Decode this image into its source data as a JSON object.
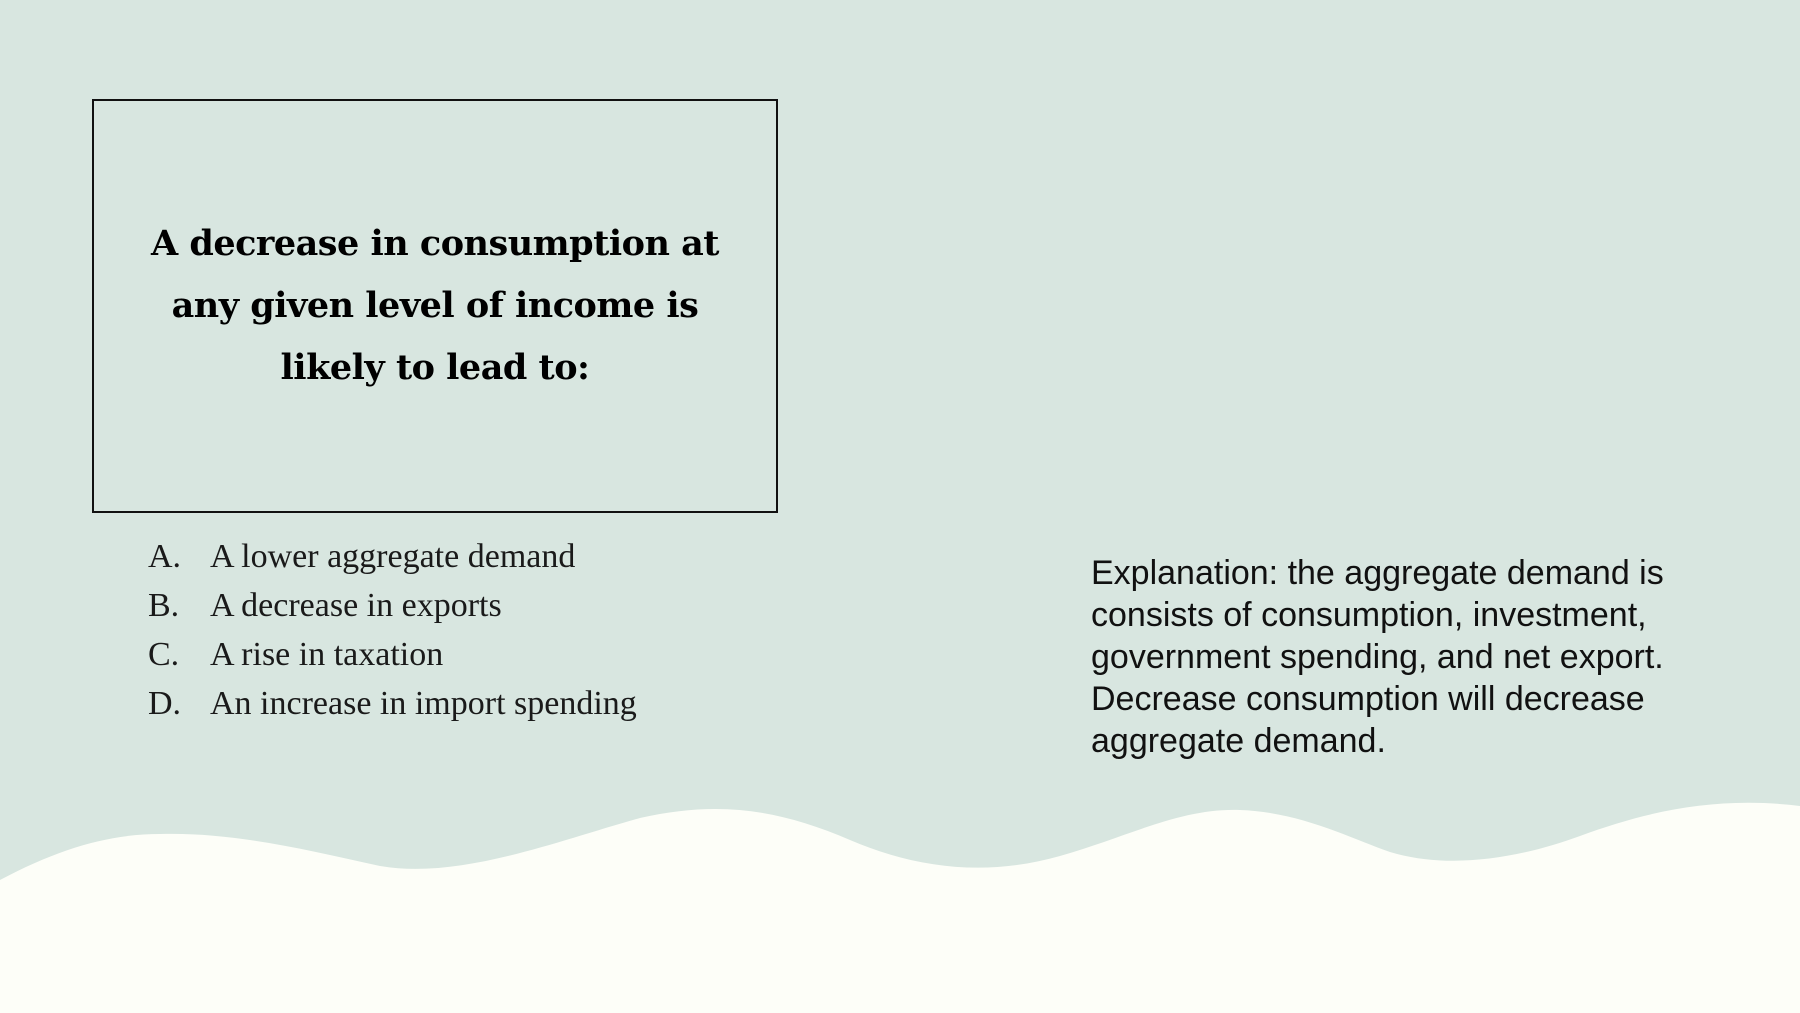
{
  "colors": {
    "background": "#d8e6e0",
    "wave": "#fdfef8",
    "text": "#111111"
  },
  "question": {
    "text": "A decrease in consumption at any given level of income is likely to lead to:"
  },
  "options": [
    {
      "letter": "A.",
      "text": "A lower aggregate demand"
    },
    {
      "letter": "B.",
      "text": "A decrease in exports"
    },
    {
      "letter": "C.",
      "text": "A rise in taxation"
    },
    {
      "letter": "D.",
      "text": "An increase in import spending"
    }
  ],
  "explanation": {
    "text": "Explanation: the aggregate demand is consists of consumption, investment, government spending, and net export. Decrease consumption will decrease aggregate demand."
  }
}
